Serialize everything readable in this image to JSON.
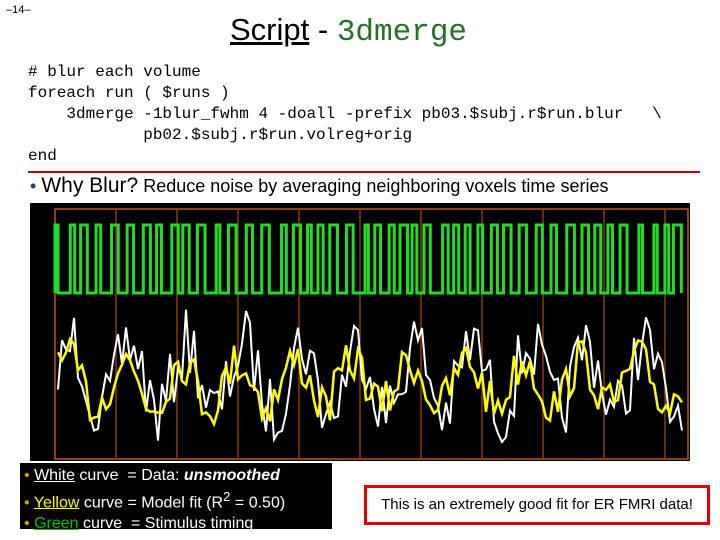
{
  "page_number": "–14–",
  "title": {
    "word": "Script",
    "separator": " - ",
    "command": "3dmerge"
  },
  "code": [
    "# blur each volume",
    "foreach run ( $runs )",
    "    3dmerge -1blur_fwhm 4 -doall -prefix pb03.$subj.r$run.blur   \\",
    "            pb02.$subj.r$run.volreg+orig",
    "end"
  ],
  "bullet": {
    "marker": "•",
    "lead": "Why Blur?",
    "text": " Reduce noise by averaging neighboring voxels time series"
  },
  "legend": [
    {
      "marker": "•",
      "name": "White",
      "text": " curve  = Data: ",
      "emphasis": "unsmoothed"
    },
    {
      "marker": "•",
      "name": "Yellow",
      "text": " curve = Model fit (R",
      "sup": "2",
      "tail": " = 0.50)"
    },
    {
      "marker": "•",
      "name": "Green",
      "text": " curve  = Stimulus timing"
    }
  ],
  "note": "This is an extremely good fit for ER FMRI data!"
}
